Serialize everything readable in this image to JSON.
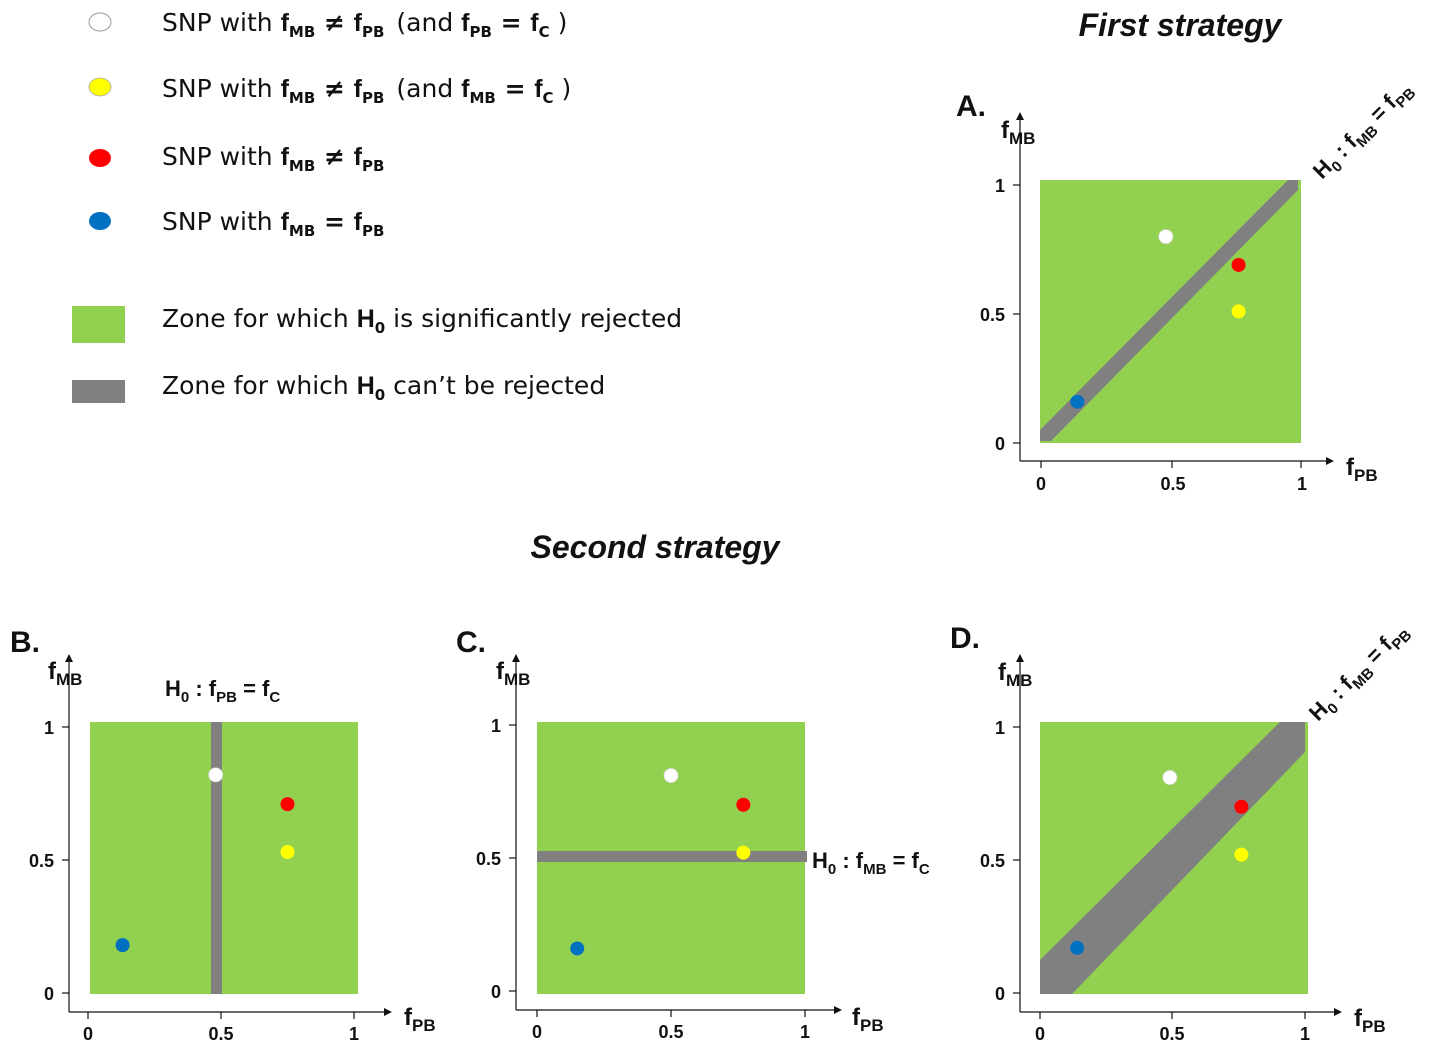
{
  "colors": {
    "green": "#92D050",
    "gray": "#808080",
    "white_snp": "#FFFFFF",
    "yellow_snp": "#FFFF00",
    "red_snp": "#FF0000",
    "blue_snp": "#0070C0"
  },
  "legend": {
    "snp_white": {
      "pre": "SNP with ",
      "f": "f",
      "mb": "MB",
      "neq": " ≠ ",
      "pb": "PB",
      "paren_open": "(and ",
      "pb2": "PB",
      "eq": " = ",
      "c": "C",
      "paren_close": " )"
    },
    "snp_yellow": {
      "pre": "SNP with ",
      "f": "f",
      "mb": "MB",
      "neq": " ≠ ",
      "pb": "PB",
      "paren_open": "(and ",
      "mb2": "MB",
      "eq": " = ",
      "c": "C",
      "paren_close": " )"
    },
    "snp_red": {
      "pre": "SNP with ",
      "f": "f",
      "mb": "MB",
      "neq": " ≠ ",
      "pb": "PB"
    },
    "snp_blue": {
      "pre": "SNP with ",
      "f": "f",
      "mb": "MB",
      "eq": " = ",
      "pb": "PB"
    },
    "zone_green": {
      "pre": "Zone for which ",
      "h": "H",
      "sub": "0",
      "post": " is significantly rejected"
    },
    "zone_gray": {
      "pre": "Zone for which ",
      "h": "H",
      "sub": "0",
      "post": " can’t be rejected"
    }
  },
  "titles": {
    "first": "First strategy",
    "second": "Second strategy"
  },
  "axes": {
    "y_f": "f",
    "y_sub": "MB",
    "x_f": "f",
    "x_sub": "PB",
    "ticks": [
      "0",
      "0.5",
      "1"
    ]
  },
  "panels": {
    "A": {
      "letter": "A.",
      "h0": {
        "h": "H",
        "z": "0",
        "colon": " : ",
        "f1": "f",
        "s1": "MB",
        "eq": " = ",
        "f2": "f",
        "s2": "PB"
      }
    },
    "B": {
      "letter": "B.",
      "h0": {
        "h": "H",
        "z": "0",
        "colon": " : ",
        "f1": "f",
        "s1": "PB",
        "eq": " = ",
        "f2": "f",
        "s2": "C"
      }
    },
    "C": {
      "letter": "C.",
      "h0": {
        "h": "H",
        "z": "0",
        "colon": " : ",
        "f1": "f",
        "s1": "MB",
        "eq": " = ",
        "f2": "f",
        "s2": "C"
      }
    },
    "D": {
      "letter": "D.",
      "h0": {
        "h": "H",
        "z": "0",
        "colon": " : ",
        "f1": "f",
        "s1": "MB",
        "eq": " = ",
        "f2": "f",
        "s2": "PB"
      }
    }
  },
  "points": {
    "A": {
      "white": [
        0.48,
        0.8
      ],
      "red": [
        0.76,
        0.69
      ],
      "yellow": [
        0.76,
        0.51
      ],
      "blue": [
        0.14,
        0.16
      ]
    },
    "B": {
      "white": [
        0.48,
        0.82
      ],
      "red": [
        0.75,
        0.71
      ],
      "yellow": [
        0.75,
        0.53
      ],
      "blue": [
        0.13,
        0.18
      ]
    },
    "C": {
      "white": [
        0.5,
        0.81
      ],
      "red": [
        0.77,
        0.7
      ],
      "yellow": [
        0.77,
        0.52
      ],
      "blue": [
        0.15,
        0.16
      ]
    },
    "D": {
      "white": [
        0.49,
        0.81
      ],
      "red": [
        0.76,
        0.7
      ],
      "yellow": [
        0.76,
        0.52
      ],
      "blue": [
        0.14,
        0.17
      ]
    }
  }
}
